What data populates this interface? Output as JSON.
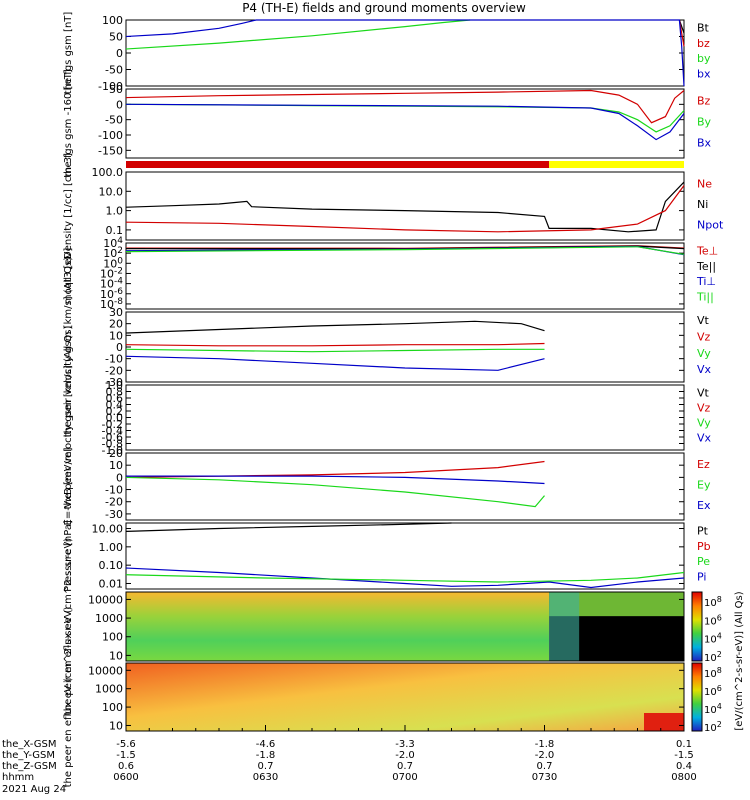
{
  "title": "P4 (TH-E) fields and ground moments overview",
  "colors": {
    "black": "#000000",
    "red": "#d20000",
    "green": "#1ad81a",
    "blue": "#0000c8",
    "yellow": "#ffff00"
  },
  "x_axis": {
    "rows": [
      {
        "label": "the_X-GSM",
        "values": [
          "-5.6",
          "-4.6",
          "-3.3",
          "-1.8",
          "0.1"
        ]
      },
      {
        "label": "the_Y-GSM",
        "values": [
          "-1.5",
          "-1.8",
          "-2.0",
          "-2.0",
          "-1.5"
        ]
      },
      {
        "label": "the_Z-GSM",
        "values": [
          "0.6",
          "0.7",
          "0.7",
          "0.7",
          "0.4"
        ]
      },
      {
        "label": "hhmm",
        "values": [
          "0600",
          "0630",
          "0700",
          "0730",
          "0800"
        ]
      }
    ],
    "date": "2021 Aug 24"
  },
  "colorbar_label": "[eV/(cm^2-s-sr-eV)] (All Qs)",
  "chart_data": [
    {
      "id": "fgs_gsm",
      "type": "line",
      "ylabel": "the fgs gsm [nT]",
      "ylim": [
        -100,
        100
      ],
      "yticks": [
        "100",
        "50",
        "0",
        "-50",
        "-100"
      ],
      "xlim_minutes": [
        0,
        120
      ],
      "legend": [
        "Bt",
        "bz",
        "by",
        "bx"
      ],
      "series": [
        {
          "name": "Bt",
          "color": "black",
          "x": [
            119,
            119.5,
            120
          ],
          "y": [
            100,
            80,
            60
          ]
        },
        {
          "name": "bz",
          "color": "red",
          "x": [
            119,
            119.5,
            120
          ],
          "y": [
            100,
            60,
            20
          ]
        },
        {
          "name": "by",
          "color": "green",
          "x": [
            0,
            20,
            40,
            60,
            68,
            74
          ],
          "y": [
            12,
            30,
            52,
            80,
            92,
            100
          ]
        },
        {
          "name": "bx",
          "color": "blue",
          "x": [
            0,
            10,
            20,
            25,
            28,
            119,
            119.5,
            120
          ],
          "y": [
            50,
            58,
            75,
            90,
            100,
            100,
            20,
            -100
          ]
        }
      ]
    },
    {
      "id": "fgs_gsm_m160",
      "type": "line",
      "ylabel": "the fgs gsm -160 [nT]",
      "ylim": [
        -175,
        50
      ],
      "yticks": [
        "50",
        "0",
        "-50",
        "-100",
        "-150"
      ],
      "xlim_minutes": [
        0,
        120
      ],
      "legend": [
        "Bz",
        "By",
        "Bx"
      ],
      "series": [
        {
          "name": "Bz",
          "color": "red",
          "x": [
            0,
            20,
            40,
            60,
            80,
            100,
            106,
            110,
            113,
            116,
            118,
            120
          ],
          "y": [
            22,
            28,
            32,
            36,
            40,
            45,
            30,
            0,
            -60,
            -40,
            20,
            45
          ]
        },
        {
          "name": "By",
          "color": "green",
          "x": [
            0,
            20,
            40,
            60,
            80,
            100,
            106,
            110,
            114,
            117,
            120
          ],
          "y": [
            0,
            -2,
            -4,
            -6,
            -8,
            -12,
            -25,
            -50,
            -90,
            -70,
            -20
          ]
        },
        {
          "name": "Bx",
          "color": "blue",
          "x": [
            0,
            40,
            80,
            100,
            106,
            110,
            114,
            117,
            120
          ],
          "y": [
            0,
            -3,
            -6,
            -12,
            -30,
            -70,
            -115,
            -90,
            -30
          ]
        }
      ]
    },
    {
      "id": "mode_bar",
      "type": "bar",
      "segments": [
        {
          "from": 0,
          "to": 91,
          "color": "red"
        },
        {
          "from": 91,
          "to": 120,
          "color": "yellow"
        }
      ]
    },
    {
      "id": "density",
      "type": "line",
      "ylabel": "Density [1/cc] [cm-3]",
      "log": true,
      "ylim": [
        0.03,
        100
      ],
      "yticks": [
        "100.0",
        "10.0",
        "1.0",
        "0.1"
      ],
      "xlim_minutes": [
        0,
        120
      ],
      "legend": [
        "Ne",
        "Ni",
        "Npot"
      ],
      "series": [
        {
          "name": "Ni",
          "color": "black",
          "x": [
            0,
            10,
            20,
            26,
            27,
            40,
            60,
            80,
            90,
            91,
            100,
            108,
            114,
            116,
            120
          ],
          "y": [
            1.5,
            1.8,
            2.2,
            3.0,
            1.6,
            1.2,
            1.0,
            0.8,
            0.5,
            0.12,
            0.12,
            0.08,
            0.1,
            3,
            30
          ]
        },
        {
          "name": "Ne",
          "color": "red",
          "x": [
            0,
            20,
            40,
            60,
            80,
            100,
            110,
            116,
            120
          ],
          "y": [
            0.25,
            0.22,
            0.15,
            0.1,
            0.08,
            0.1,
            0.2,
            1.0,
            20
          ]
        }
      ]
    },
    {
      "id": "moqt3",
      "type": "line",
      "ylabel": "moqt3 [eV]",
      "log": true,
      "ylim": [
        1e-09,
        10000.0
      ],
      "yticks": [
        "10^4",
        "10^2",
        "10^0",
        "10^-2",
        "10^-4",
        "10^-6",
        "10^-8"
      ],
      "xlim_minutes": [
        0,
        120
      ],
      "legend": [
        "Te⊥",
        "Te||",
        "Ti⊥",
        "Ti||"
      ],
      "series": [
        {
          "name": "Te⊥",
          "color": "red",
          "x": [
            0,
            60,
            110,
            120
          ],
          "y": [
            1000,
            900,
            3000,
            1000
          ]
        },
        {
          "name": "Te||",
          "color": "black",
          "x": [
            0,
            60,
            110,
            120
          ],
          "y": [
            800,
            700,
            2500,
            800
          ]
        },
        {
          "name": "Ti⊥",
          "color": "blue",
          "x": [
            0,
            60,
            110,
            120
          ],
          "y": [
            300,
            600,
            2000,
            50
          ]
        },
        {
          "name": "Ti||",
          "color": "green",
          "x": [
            0,
            60,
            110,
            120
          ],
          "y": [
            200,
            500,
            1800,
            60
          ]
        }
      ]
    },
    {
      "id": "peir_velocity",
      "type": "line",
      "ylabel": "the peir velocity gsm [km/s] (All Qs)",
      "ylim": [
        -30,
        30
      ],
      "yticks": [
        "30",
        "20",
        "10",
        "0",
        "-10",
        "-20",
        "-30"
      ],
      "xlim_minutes": [
        0,
        120
      ],
      "legend": [
        "Vt",
        "Vz",
        "Vy",
        "Vx"
      ],
      "series": [
        {
          "name": "Vt",
          "color": "black",
          "x": [
            0,
            20,
            40,
            60,
            75,
            85,
            90
          ],
          "y": [
            12,
            15,
            18,
            20,
            22,
            20,
            14
          ]
        },
        {
          "name": "Vz",
          "color": "red",
          "x": [
            0,
            20,
            40,
            60,
            80,
            90
          ],
          "y": [
            2,
            1,
            1,
            2,
            2,
            3
          ]
        },
        {
          "name": "Vy",
          "color": "green",
          "x": [
            0,
            20,
            40,
            60,
            80,
            90
          ],
          "y": [
            -2,
            -3,
            -4,
            -3,
            -2,
            -2
          ]
        },
        {
          "name": "Vx",
          "color": "blue",
          "x": [
            0,
            20,
            40,
            60,
            80,
            90
          ],
          "y": [
            -8,
            -10,
            -14,
            -18,
            -20,
            -10
          ]
        }
      ]
    },
    {
      "id": "peer_velocity",
      "type": "line",
      "ylabel": "the peer velocity gsm [km/s] (All Qs)",
      "ylim": [
        -1,
        1
      ],
      "yticks": [
        "1.0",
        "0.8",
        "0.6",
        "0.4",
        "0.2",
        "0.0",
        "-0.2",
        "-0.4",
        "-0.6",
        "-0.8",
        "-1.0"
      ],
      "xlim_minutes": [
        0,
        120
      ],
      "legend": [
        "Vt",
        "Vz",
        "Vy",
        "Vx"
      ],
      "series": []
    },
    {
      "id": "efield",
      "type": "line",
      "ylabel": "E=-VxB [mV/m]",
      "ylim": [
        -35,
        20
      ],
      "yticks": [
        "20",
        "10",
        "0",
        "-10",
        "-20",
        "-30"
      ],
      "xlim_minutes": [
        0,
        120
      ],
      "legend": [
        "Ez",
        "Ey",
        "Ex"
      ],
      "series": [
        {
          "name": "Ez",
          "color": "red",
          "x": [
            0,
            20,
            40,
            60,
            80,
            90
          ],
          "y": [
            0,
            1,
            2,
            4,
            8,
            13
          ]
        },
        {
          "name": "Ey",
          "color": "green",
          "x": [
            0,
            20,
            40,
            60,
            80,
            88,
            90
          ],
          "y": [
            0,
            -2,
            -6,
            -12,
            -20,
            -24,
            -15
          ]
        },
        {
          "name": "Ex",
          "color": "blue",
          "x": [
            0,
            20,
            40,
            60,
            80,
            90
          ],
          "y": [
            1,
            1,
            1,
            0,
            -3,
            -5
          ]
        }
      ]
    },
    {
      "id": "pressure",
      "type": "line",
      "ylabel": "Pressure [nPa]",
      "log": true,
      "ylim": [
        0.005,
        20
      ],
      "yticks": [
        "10.00",
        "1.00",
        "0.10",
        "0.01"
      ],
      "xlim_minutes": [
        0,
        120
      ],
      "legend": [
        "Pt",
        "Pb",
        "Pe",
        "Pi"
      ],
      "series": [
        {
          "name": "Pt",
          "color": "black",
          "x": [
            0,
            20,
            40,
            60,
            70
          ],
          "y": [
            7,
            10,
            13,
            17,
            20
          ]
        },
        {
          "name": "Pi",
          "color": "blue",
          "x": [
            0,
            20,
            40,
            60,
            70,
            80,
            91,
            100,
            110,
            120
          ],
          "y": [
            0.07,
            0.04,
            0.02,
            0.01,
            0.007,
            0.008,
            0.012,
            0.006,
            0.012,
            0.02
          ]
        },
        {
          "name": "Pe",
          "color": "green",
          "x": [
            0,
            30,
            60,
            80,
            100,
            110,
            120
          ],
          "y": [
            0.03,
            0.02,
            0.015,
            0.012,
            0.015,
            0.02,
            0.04
          ]
        }
      ]
    },
    {
      "id": "peir_spec",
      "type": "heatmap",
      "ylabel": "the peir en eflux eV (cm^2-s-sr-eV)",
      "log": true,
      "ylim": [
        5,
        25000
      ],
      "yticks": [
        "10000",
        "1000",
        "100",
        "10"
      ],
      "xlim_minutes": [
        0,
        120
      ],
      "colorbar_ticks": [
        "10^8",
        "10^6",
        "10^4",
        "10^2"
      ]
    },
    {
      "id": "peer_spec",
      "type": "heatmap",
      "ylabel": "the peer en eflux eV (cm^2-s-sr-eV)",
      "log": true,
      "ylim": [
        5,
        25000
      ],
      "yticks": [
        "10000",
        "1000",
        "100",
        "10"
      ],
      "xlim_minutes": [
        0,
        120
      ],
      "colorbar_ticks": [
        "10^8",
        "10^6",
        "10^4",
        "10^2"
      ]
    }
  ]
}
